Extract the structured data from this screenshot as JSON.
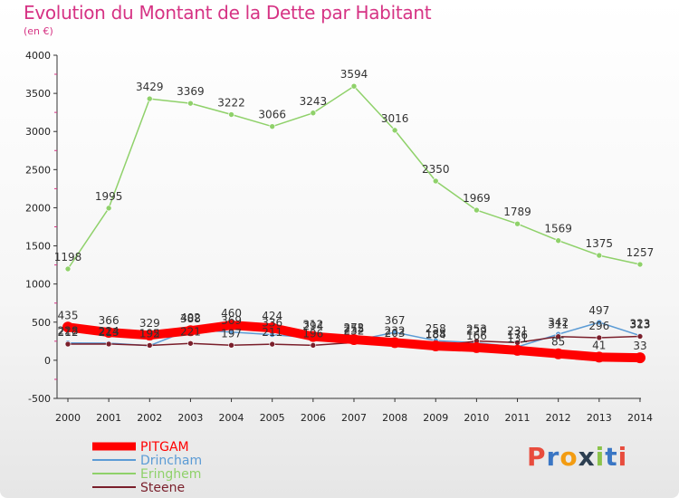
{
  "chart_data": {
    "type": "line",
    "title": "Evolution du Montant de la Dette par Habitant",
    "subtitle": "(en €)",
    "x": [
      "2000",
      "2001",
      "2002",
      "2003",
      "2004",
      "2005",
      "2006",
      "2007",
      "2008",
      "2009",
      "2010",
      "2011",
      "2012",
      "2013",
      "2014"
    ],
    "ylim": [
      -500,
      4000
    ],
    "yticks": [
      -500,
      0,
      500,
      1000,
      1500,
      2000,
      2500,
      3000,
      3500,
      4000
    ],
    "grid": false,
    "legend_position": "bottom-left",
    "series": [
      {
        "name": "PITGAM",
        "color": "#ff0000",
        "values": [
          435,
          366,
          329,
          388,
          460,
          424,
          312,
          272,
          232,
          188,
          166,
          131,
          85,
          41,
          33
        ]
      },
      {
        "name": "Drincham",
        "color": "#5b9bd5",
        "values": [
          228,
          224,
          192,
          402,
          369,
          336,
          294,
          255,
          367,
          258,
          229,
          176,
          342,
          497,
          323
        ]
      },
      {
        "name": "Eringhem",
        "color": "#8fd16a",
        "values": [
          1198,
          1995,
          3429,
          3369,
          3222,
          3066,
          3243,
          3594,
          3016,
          2350,
          1969,
          1789,
          1569,
          1375,
          1257
        ]
      },
      {
        "name": "Steene",
        "color": "#7a1f2b",
        "values": [
          212,
          213,
          195,
          221,
          197,
          211,
          196,
          232,
          203,
          184,
          253,
          231,
          311,
          296,
          313
        ]
      }
    ]
  },
  "logo": {
    "text": "Proxiti",
    "letters": [
      "P",
      "r",
      "o",
      "x",
      "i",
      "t",
      "i"
    ],
    "colors": [
      "#e84c3d",
      "#3a76c4",
      "#f39c12",
      "#2c3e50",
      "#8bc34a",
      "#3a76c4",
      "#e84c3d"
    ]
  }
}
